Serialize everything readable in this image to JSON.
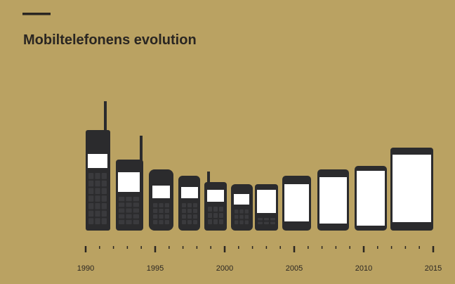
{
  "title": "Mobiltelefonens evolution",
  "timeline": {
    "labels": [
      "1990",
      "1995",
      "2000",
      "2005",
      "2010",
      "2015"
    ]
  }
}
